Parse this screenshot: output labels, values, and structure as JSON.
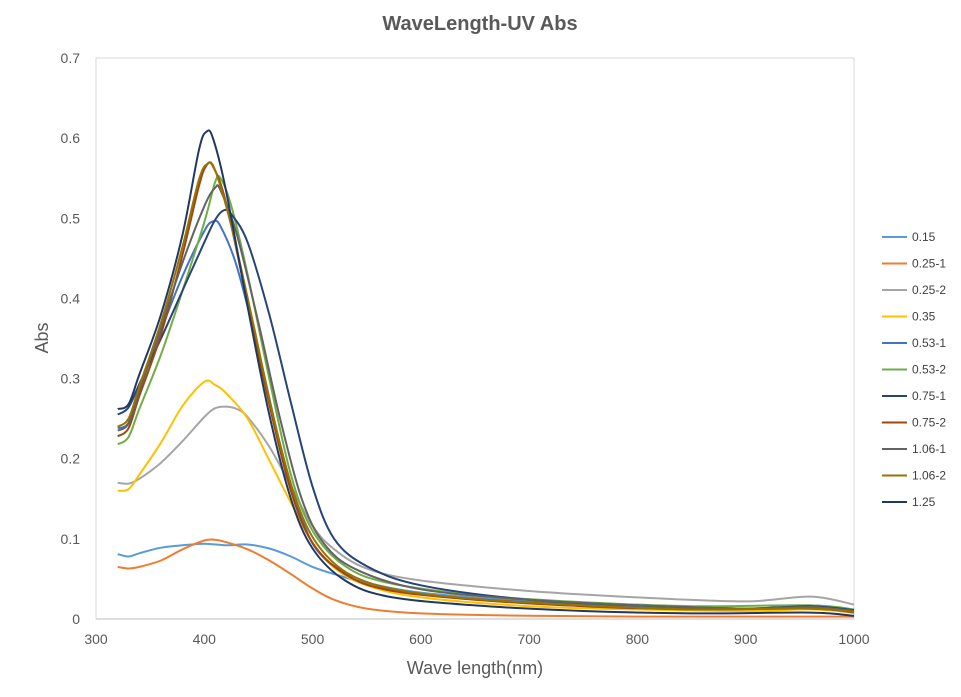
{
  "chart_data": {
    "type": "line",
    "title": "WaveLength-UV Abs",
    "xlabel": "Wave length(nm)",
    "ylabel": "Abs",
    "xlim": [
      300,
      1000
    ],
    "ylim": [
      0,
      0.7
    ],
    "xticks": [
      300,
      400,
      500,
      600,
      700,
      800,
      900,
      1000
    ],
    "yticks": [
      0,
      0.1,
      0.2,
      0.3,
      0.4,
      0.5,
      0.6,
      0.7
    ],
    "ytick_labels": [
      "0",
      "0.1",
      "0.2",
      "0.3",
      "0.4",
      "0.5",
      "0.6",
      "0.7"
    ],
    "grid": false,
    "legend_position": "right",
    "series": [
      {
        "name": "0.15",
        "color": "#5B9BD5",
        "points": [
          [
            320,
            0.081
          ],
          [
            330,
            0.078
          ],
          [
            340,
            0.082
          ],
          [
            360,
            0.089
          ],
          [
            380,
            0.092
          ],
          [
            400,
            0.094
          ],
          [
            420,
            0.092
          ],
          [
            440,
            0.093
          ],
          [
            460,
            0.088
          ],
          [
            480,
            0.078
          ],
          [
            500,
            0.065
          ],
          [
            520,
            0.056
          ],
          [
            550,
            0.045
          ],
          [
            600,
            0.033
          ],
          [
            700,
            0.022
          ],
          [
            800,
            0.016
          ],
          [
            900,
            0.012
          ],
          [
            950,
            0.013
          ],
          [
            970,
            0.016
          ],
          [
            1000,
            0.01
          ]
        ]
      },
      {
        "name": "0.25-1",
        "color": "#ED7D31",
        "points": [
          [
            320,
            0.065
          ],
          [
            330,
            0.063
          ],
          [
            340,
            0.065
          ],
          [
            360,
            0.073
          ],
          [
            380,
            0.087
          ],
          [
            400,
            0.098
          ],
          [
            410,
            0.099
          ],
          [
            420,
            0.096
          ],
          [
            440,
            0.087
          ],
          [
            460,
            0.073
          ],
          [
            480,
            0.056
          ],
          [
            500,
            0.038
          ],
          [
            520,
            0.024
          ],
          [
            550,
            0.013
          ],
          [
            600,
            0.007
          ],
          [
            700,
            0.004
          ],
          [
            800,
            0.003
          ],
          [
            900,
            0.003
          ],
          [
            1000,
            0.003
          ]
        ]
      },
      {
        "name": "0.25-2",
        "color": "#A5A5A5",
        "points": [
          [
            320,
            0.17
          ],
          [
            330,
            0.169
          ],
          [
            340,
            0.175
          ],
          [
            360,
            0.195
          ],
          [
            380,
            0.222
          ],
          [
            400,
            0.252
          ],
          [
            410,
            0.263
          ],
          [
            420,
            0.265
          ],
          [
            430,
            0.262
          ],
          [
            440,
            0.252
          ],
          [
            460,
            0.215
          ],
          [
            480,
            0.166
          ],
          [
            500,
            0.116
          ],
          [
            520,
            0.087
          ],
          [
            550,
            0.063
          ],
          [
            600,
            0.048
          ],
          [
            700,
            0.035
          ],
          [
            800,
            0.027
          ],
          [
            900,
            0.022
          ],
          [
            960,
            0.028
          ],
          [
            1000,
            0.018
          ]
        ]
      },
      {
        "name": "0.35",
        "color": "#FFC000",
        "points": [
          [
            320,
            0.16
          ],
          [
            330,
            0.162
          ],
          [
            340,
            0.18
          ],
          [
            360,
            0.22
          ],
          [
            380,
            0.266
          ],
          [
            400,
            0.296
          ],
          [
            410,
            0.292
          ],
          [
            420,
            0.282
          ],
          [
            440,
            0.25
          ],
          [
            460,
            0.198
          ],
          [
            480,
            0.145
          ],
          [
            500,
            0.095
          ],
          [
            520,
            0.064
          ],
          [
            550,
            0.042
          ],
          [
            600,
            0.027
          ],
          [
            700,
            0.016
          ],
          [
            800,
            0.012
          ],
          [
            900,
            0.01
          ],
          [
            960,
            0.012
          ],
          [
            1000,
            0.008
          ]
        ]
      },
      {
        "name": "0.53-1",
        "color": "#4472C4",
        "points": [
          [
            320,
            0.238
          ],
          [
            330,
            0.245
          ],
          [
            340,
            0.285
          ],
          [
            360,
            0.36
          ],
          [
            380,
            0.428
          ],
          [
            400,
            0.484
          ],
          [
            408,
            0.496
          ],
          [
            415,
            0.49
          ],
          [
            430,
            0.44
          ],
          [
            450,
            0.335
          ],
          [
            470,
            0.218
          ],
          [
            490,
            0.125
          ],
          [
            510,
            0.077
          ],
          [
            550,
            0.046
          ],
          [
            600,
            0.031
          ],
          [
            700,
            0.021
          ],
          [
            800,
            0.016
          ],
          [
            900,
            0.013
          ],
          [
            960,
            0.017
          ],
          [
            1000,
            0.011
          ]
        ]
      },
      {
        "name": "0.53-2",
        "color": "#70AD47",
        "points": [
          [
            320,
            0.218
          ],
          [
            330,
            0.227
          ],
          [
            340,
            0.262
          ],
          [
            360,
            0.33
          ],
          [
            380,
            0.41
          ],
          [
            400,
            0.495
          ],
          [
            410,
            0.545
          ],
          [
            415,
            0.55
          ],
          [
            425,
            0.515
          ],
          [
            440,
            0.43
          ],
          [
            460,
            0.3
          ],
          [
            480,
            0.18
          ],
          [
            500,
            0.11
          ],
          [
            530,
            0.066
          ],
          [
            570,
            0.045
          ],
          [
            650,
            0.03
          ],
          [
            750,
            0.021
          ],
          [
            850,
            0.016
          ],
          [
            960,
            0.017
          ],
          [
            1000,
            0.012
          ]
        ]
      },
      {
        "name": "0.75-1",
        "color": "#264478",
        "points": [
          [
            320,
            0.255
          ],
          [
            330,
            0.264
          ],
          [
            340,
            0.293
          ],
          [
            360,
            0.35
          ],
          [
            380,
            0.41
          ],
          [
            400,
            0.47
          ],
          [
            410,
            0.498
          ],
          [
            418,
            0.51
          ],
          [
            425,
            0.505
          ],
          [
            440,
            0.47
          ],
          [
            460,
            0.38
          ],
          [
            480,
            0.27
          ],
          [
            500,
            0.165
          ],
          [
            520,
            0.1
          ],
          [
            550,
            0.066
          ],
          [
            600,
            0.042
          ],
          [
            700,
            0.024
          ],
          [
            800,
            0.017
          ],
          [
            900,
            0.013
          ],
          [
            960,
            0.016
          ],
          [
            1000,
            0.011
          ]
        ]
      },
      {
        "name": "0.75-2",
        "color": "#9E480E",
        "points": [
          [
            320,
            0.228
          ],
          [
            330,
            0.238
          ],
          [
            340,
            0.278
          ],
          [
            360,
            0.355
          ],
          [
            380,
            0.455
          ],
          [
            395,
            0.54
          ],
          [
            402,
            0.566
          ],
          [
            408,
            0.565
          ],
          [
            420,
            0.52
          ],
          [
            440,
            0.395
          ],
          [
            460,
            0.268
          ],
          [
            480,
            0.16
          ],
          [
            500,
            0.095
          ],
          [
            530,
            0.056
          ],
          [
            570,
            0.036
          ],
          [
            650,
            0.024
          ],
          [
            750,
            0.016
          ],
          [
            850,
            0.012
          ],
          [
            960,
            0.013
          ],
          [
            1000,
            0.008
          ]
        ]
      },
      {
        "name": "1.06-1",
        "color": "#636363",
        "points": [
          [
            320,
            0.235
          ],
          [
            330,
            0.244
          ],
          [
            340,
            0.284
          ],
          [
            360,
            0.365
          ],
          [
            380,
            0.445
          ],
          [
            400,
            0.515
          ],
          [
            410,
            0.538
          ],
          [
            415,
            0.535
          ],
          [
            430,
            0.48
          ],
          [
            450,
            0.37
          ],
          [
            470,
            0.25
          ],
          [
            490,
            0.15
          ],
          [
            510,
            0.095
          ],
          [
            540,
            0.062
          ],
          [
            600,
            0.037
          ],
          [
            700,
            0.024
          ],
          [
            800,
            0.017
          ],
          [
            900,
            0.013
          ],
          [
            960,
            0.015
          ],
          [
            1000,
            0.01
          ]
        ]
      },
      {
        "name": "1.06-2",
        "color": "#997300",
        "points": [
          [
            320,
            0.24
          ],
          [
            330,
            0.25
          ],
          [
            340,
            0.29
          ],
          [
            360,
            0.37
          ],
          [
            380,
            0.465
          ],
          [
            395,
            0.548
          ],
          [
            403,
            0.568
          ],
          [
            410,
            0.56
          ],
          [
            425,
            0.49
          ],
          [
            445,
            0.37
          ],
          [
            465,
            0.245
          ],
          [
            485,
            0.148
          ],
          [
            505,
            0.092
          ],
          [
            535,
            0.055
          ],
          [
            580,
            0.036
          ],
          [
            650,
            0.025
          ],
          [
            750,
            0.017
          ],
          [
            850,
            0.012
          ],
          [
            960,
            0.013
          ],
          [
            1000,
            0.009
          ]
        ]
      },
      {
        "name": "1.25",
        "color": "#203864",
        "points": [
          [
            320,
            0.262
          ],
          [
            330,
            0.268
          ],
          [
            340,
            0.305
          ],
          [
            360,
            0.38
          ],
          [
            380,
            0.48
          ],
          [
            395,
            0.585
          ],
          [
            402,
            0.608
          ],
          [
            408,
            0.6
          ],
          [
            420,
            0.535
          ],
          [
            440,
            0.39
          ],
          [
            460,
            0.255
          ],
          [
            480,
            0.15
          ],
          [
            500,
            0.088
          ],
          [
            530,
            0.048
          ],
          [
            570,
            0.028
          ],
          [
            650,
            0.017
          ],
          [
            750,
            0.01
          ],
          [
            850,
            0.007
          ],
          [
            960,
            0.008
          ],
          [
            1000,
            0.004
          ]
        ]
      }
    ]
  }
}
